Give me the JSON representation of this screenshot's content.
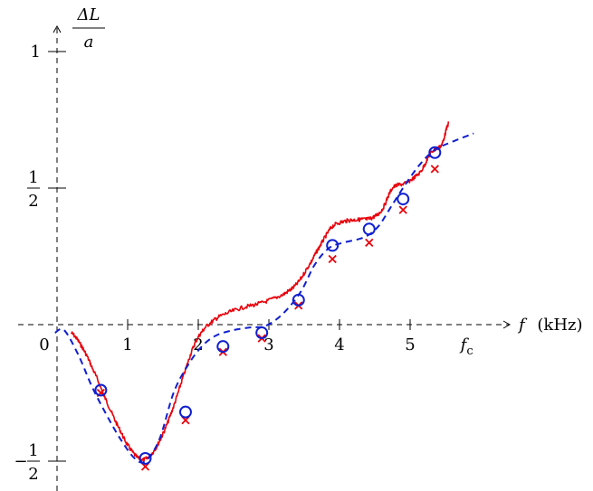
{
  "chart_data": {
    "type": "line",
    "title": "",
    "xlabel": "f (kHz)",
    "xlabel_var": "f",
    "xlabel_unit": "(kHz)",
    "ylabel": "ΔL / a",
    "ylabel_num": "ΔL",
    "ylabel_den": "a",
    "xlim": [
      -0.05,
      6.5
    ],
    "ylim": [
      -0.58,
      1.1
    ],
    "grid": false,
    "legend": "none",
    "origin_label": "0",
    "x_ticks": [
      {
        "value": 1,
        "label": "1"
      },
      {
        "value": 2,
        "label": "2"
      },
      {
        "value": 3,
        "label": "3"
      },
      {
        "value": 4,
        "label": "4"
      },
      {
        "value": 5,
        "label": "5"
      }
    ],
    "x_special_tick": {
      "value": 5.88,
      "label": "f",
      "subscript": "c"
    },
    "y_ticks": [
      {
        "value": 1,
        "label": "1"
      },
      {
        "value": 0.5,
        "num": "1",
        "den": "2",
        "sign": ""
      },
      {
        "value": -0.5,
        "num": "1",
        "den": "2",
        "sign": "−"
      }
    ],
    "series": [
      {
        "style": "solid",
        "color": "#e8000b",
        "noisy": true,
        "x": [
          0.2,
          0.35,
          0.5,
          0.7,
          0.9,
          1.05,
          1.2,
          1.35,
          1.5,
          1.65,
          1.8,
          1.95,
          2.1,
          2.3,
          2.6,
          2.9,
          3.2,
          3.4,
          3.6,
          3.75,
          3.9,
          4.1,
          4.3,
          4.45,
          4.6,
          4.75,
          4.95,
          5.15,
          5.3,
          5.45,
          5.55
        ],
        "y": [
          -0.03,
          -0.08,
          -0.16,
          -0.28,
          -0.39,
          -0.46,
          -0.495,
          -0.47,
          -0.4,
          -0.3,
          -0.18,
          -0.07,
          -0.01,
          0.03,
          0.06,
          0.08,
          0.11,
          0.15,
          0.23,
          0.3,
          0.36,
          0.38,
          0.385,
          0.39,
          0.42,
          0.5,
          0.52,
          0.56,
          0.63,
          0.66,
          0.74
        ]
      },
      {
        "style": "dashed",
        "color": "#1020d0",
        "x": [
          -0.03,
          0.1,
          0.3,
          0.5,
          0.7,
          0.9,
          1.1,
          1.25,
          1.45,
          1.65,
          1.85,
          2.05,
          2.25,
          2.5,
          2.75,
          2.95,
          3.2,
          3.45,
          3.65,
          3.85,
          4.05,
          4.35,
          4.55,
          4.75,
          4.95,
          5.15,
          5.35,
          5.6,
          5.9
        ],
        "y": [
          -0.03,
          -0.02,
          -0.11,
          -0.23,
          -0.33,
          -0.42,
          -0.49,
          -0.5,
          -0.42,
          -0.25,
          -0.15,
          -0.08,
          -0.04,
          -0.02,
          -0.01,
          -0.005,
          0.04,
          0.12,
          0.22,
          0.28,
          0.3,
          0.32,
          0.36,
          0.44,
          0.52,
          0.59,
          0.64,
          0.67,
          0.7
        ]
      }
    ],
    "markers_circles": {
      "color": "#1020d0",
      "x": [
        0.62,
        1.25,
        1.82,
        2.35,
        2.9,
        3.42,
        3.9,
        4.42,
        4.9,
        5.35
      ],
      "y": [
        -0.24,
        -0.49,
        -0.32,
        -0.08,
        -0.03,
        0.09,
        0.29,
        0.35,
        0.46,
        0.63
      ]
    },
    "markers_crosses": {
      "color": "#e8000b",
      "x": [
        0.62,
        1.25,
        1.82,
        2.35,
        2.9,
        3.42,
        3.9,
        4.42,
        4.9,
        5.35
      ],
      "y": [
        -0.25,
        -0.52,
        -0.35,
        -0.1,
        -0.05,
        0.07,
        0.24,
        0.3,
        0.42,
        0.57
      ]
    }
  }
}
